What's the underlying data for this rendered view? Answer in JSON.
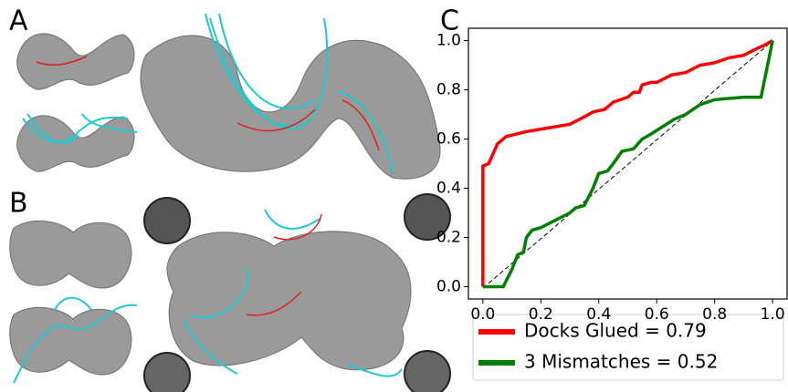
{
  "panels": [
    "A",
    "B"
  ],
  "chart_data": {
    "type": "line",
    "panel": "C",
    "series": [
      {
        "name": "Docks Glued = 0.79",
        "color": "#ff0000",
        "x": [
          0,
          0,
          0.02,
          0.05,
          0.08,
          0.15,
          0.3,
          0.35,
          0.38,
          0.42,
          0.45,
          0.5,
          0.52,
          0.54,
          0.55,
          0.58,
          0.6,
          0.65,
          0.7,
          0.75,
          0.8,
          0.85,
          0.9,
          0.95,
          0.97,
          1.0
        ],
        "values": [
          0,
          0.49,
          0.5,
          0.58,
          0.61,
          0.63,
          0.66,
          0.69,
          0.71,
          0.72,
          0.75,
          0.77,
          0.79,
          0.79,
          0.82,
          0.83,
          0.83,
          0.86,
          0.87,
          0.9,
          0.91,
          0.93,
          0.94,
          0.97,
          0.98,
          1.0
        ]
      },
      {
        "name": "3 Mismatches = 0.52",
        "color": "#008000",
        "x": [
          0,
          0.07,
          0.1,
          0.12,
          0.14,
          0.15,
          0.17,
          0.2,
          0.25,
          0.3,
          0.32,
          0.35,
          0.38,
          0.4,
          0.43,
          0.45,
          0.48,
          0.52,
          0.55,
          0.58,
          0.62,
          0.66,
          0.7,
          0.75,
          0.8,
          0.9,
          0.96,
          1.0
        ],
        "values": [
          0,
          0,
          0.07,
          0.13,
          0.14,
          0.2,
          0.23,
          0.24,
          0.27,
          0.3,
          0.32,
          0.33,
          0.4,
          0.46,
          0.47,
          0.5,
          0.55,
          0.56,
          0.6,
          0.62,
          0.65,
          0.68,
          0.7,
          0.74,
          0.76,
          0.77,
          0.77,
          1.0
        ]
      }
    ],
    "xlim": [
      -0.05,
      1.05
    ],
    "ylim": [
      -0.05,
      1.05
    ],
    "xticks": [
      {
        "value": 0,
        "label": "0.0"
      },
      {
        "value": 0.2,
        "label": "0.2"
      },
      {
        "value": 0.4,
        "label": "0.4"
      },
      {
        "value": 0.6,
        "label": "0.6"
      },
      {
        "value": 0.8,
        "label": "0.8"
      },
      {
        "value": 1,
        "label": "1.0"
      }
    ],
    "yticks": [
      {
        "value": 0,
        "label": "0.0"
      },
      {
        "value": 0.2,
        "label": "0.2"
      },
      {
        "value": 0.4,
        "label": "0.4"
      },
      {
        "value": 0.6,
        "label": "0.6"
      },
      {
        "value": 0.8,
        "label": "0.8"
      },
      {
        "value": 1,
        "label": "1.0"
      }
    ]
  }
}
